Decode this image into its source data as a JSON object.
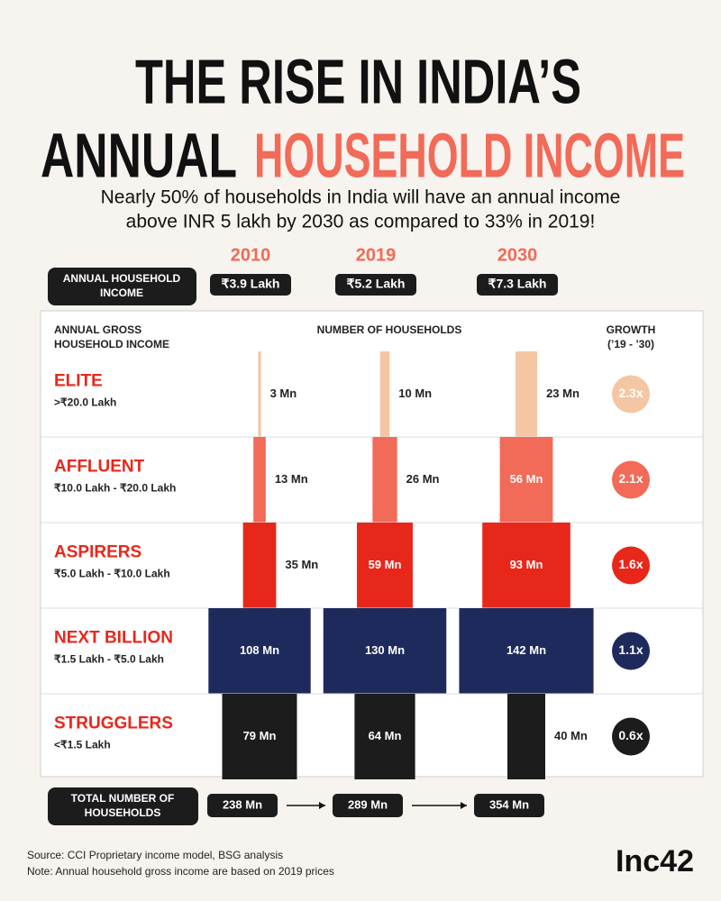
{
  "chart_data": {
    "type": "bar",
    "title": "THE RISE IN INDIA’S",
    "title_line2": [
      "ANNUAL",
      "HOUSEHOLD INCOME"
    ],
    "subtitle": [
      "Nearly 50% of households in India will have an annual income",
      "above INR 5 lakh by 2030 as compared to 33% in 2019!"
    ],
    "categories": [
      "2010",
      "2019",
      "2030"
    ],
    "income_label": [
      "ANNUAL HOUSEHOLD",
      "INCOME"
    ],
    "income_values": [
      "₹3.9 Lakh",
      "₹5.2 Lakh",
      "₹7.3 Lakh"
    ],
    "row_header": [
      "ANNUAL GROSS",
      "HOUSEHOLD INCOME"
    ],
    "column_header": "NUMBER OF HOUSEHOLDS",
    "growth_header": [
      "GROWTH",
      "(’19 - ’30)"
    ],
    "series": [
      {
        "name": "ELITE",
        "range": ">₹20.0 Lakh",
        "color": "#f5c6a3",
        "values": [
          3,
          10,
          23
        ],
        "value_labels": [
          "3 Mn",
          "10 Mn",
          "23 Mn"
        ],
        "growth": "2.3x"
      },
      {
        "name": "AFFLUENT",
        "range": "₹10.0 Lakh - ₹20.0 Lakh",
        "color": "#f26a58",
        "values": [
          13,
          26,
          56
        ],
        "value_labels": [
          "13 Mn",
          "26 Mn",
          "56 Mn"
        ],
        "growth": "2.1x"
      },
      {
        "name": "ASPIRERS",
        "range": "₹5.0 Lakh - ₹10.0 Lakh",
        "color": "#e8271b",
        "values": [
          35,
          59,
          93
        ],
        "value_labels": [
          "35 Mn",
          "59 Mn",
          "93 Mn"
        ],
        "growth": "1.6x"
      },
      {
        "name": "NEXT BILLION",
        "range": "₹1.5 Lakh - ₹5.0 Lakh",
        "color": "#1f2a5c",
        "values": [
          108,
          130,
          142
        ],
        "value_labels": [
          "108 Mn",
          "130 Mn",
          "142 Mn"
        ],
        "growth": "1.1x"
      },
      {
        "name": "STRUGGLERS",
        "range": "<₹1.5 Lakh",
        "color": "#1c1c1c",
        "values": [
          79,
          64,
          40
        ],
        "value_labels": [
          "79 Mn",
          "64 Mn",
          "40 Mn"
        ],
        "growth": "0.6x"
      }
    ],
    "totals": {
      "label": [
        "TOTAL NUMBER OF",
        "HOUSEHOLDS"
      ],
      "values": [
        238,
        289,
        354
      ],
      "value_labels": [
        "238 Mn",
        "289 Mn",
        "354 Mn"
      ]
    },
    "source": "Source: CCI Proprietary income model, BSG analysis",
    "note": "Note: Annual household gross income are based on 2019 prices",
    "logo": "Inc42"
  }
}
